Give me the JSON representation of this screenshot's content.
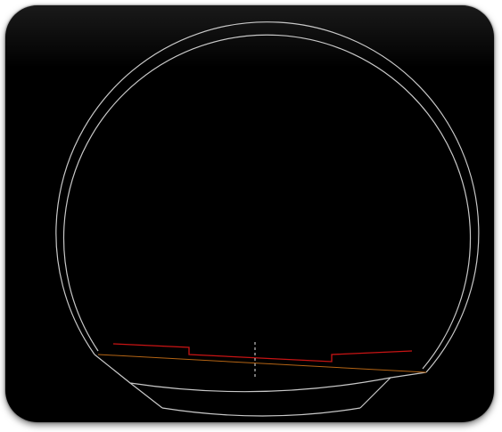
{
  "viewport": {
    "background_color": "#000000",
    "frame_shadow_color": "#000000"
  },
  "colors": {
    "tunnel_outline": "#c8c8c8",
    "red_profile": "#c81414",
    "orange_profile": "#b46414",
    "centerline": "#e6e6e6"
  }
}
